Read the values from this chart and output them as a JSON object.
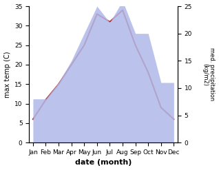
{
  "months": [
    "Jan",
    "Feb",
    "Mar",
    "Apr",
    "May",
    "Jun",
    "Jul",
    "Aug",
    "Sep",
    "Oct",
    "Nov",
    "Dec"
  ],
  "temperature": [
    6,
    11,
    15,
    20,
    25,
    33,
    31,
    34,
    25,
    18,
    9,
    6
  ],
  "precipitation": [
    8,
    8,
    11,
    15,
    20,
    25,
    22,
    26,
    20,
    20,
    11,
    11
  ],
  "temp_color": "#b03030",
  "precip_color": "#b0b8e8",
  "title": "",
  "xlabel": "date (month)",
  "ylabel_left": "max temp (C)",
  "ylabel_right": "med. precipitation\n(kg/m2)",
  "ylim_left": [
    0,
    35
  ],
  "ylim_right": [
    0,
    25
  ],
  "yticks_left": [
    0,
    5,
    10,
    15,
    20,
    25,
    30,
    35
  ],
  "yticks_right": [
    0,
    5,
    10,
    15,
    20,
    25
  ],
  "bg_color": "#ffffff"
}
